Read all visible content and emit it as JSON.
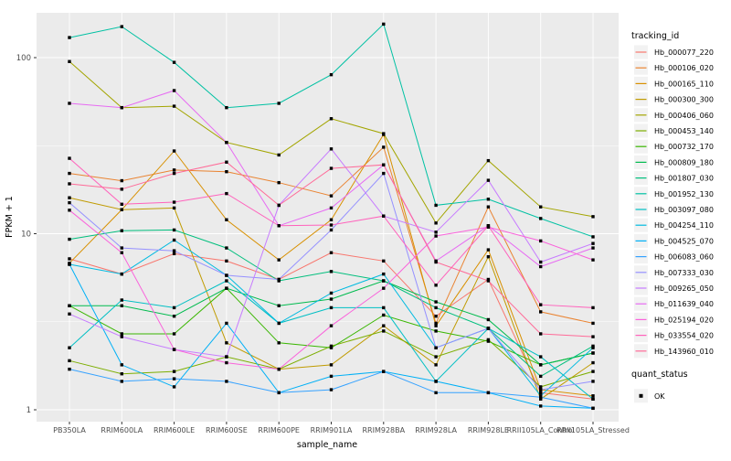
{
  "chart_data": {
    "type": "line",
    "title": "",
    "xlabel": "sample_name",
    "ylabel": "FPKM + 1",
    "y_scale": "log10",
    "y_ticks": [
      {
        "label": "1",
        "value": 1
      },
      {
        "label": "10",
        "value": 10
      },
      {
        "label": "100",
        "value": 100
      }
    ],
    "y_minor_ticks": [
      3.162,
      31.62
    ],
    "ylim": [
      0.855,
      180
    ],
    "grid": "on",
    "legend_position": "right",
    "panel_bg": "#EBEBEB",
    "grid_color": "#FFFFFF",
    "tick_label_color": "#4D4D4D",
    "axis_title_color": "#000000",
    "marker": {
      "shape": "square",
      "color": "#000000"
    },
    "categories": [
      "PB350LA",
      "RRIM600LA",
      "RRIM600LE",
      "RRIM600SE",
      "RRIM600PE",
      "RRIM901LA",
      "RRIM928BA",
      "RRIM928LA",
      "RRIM928LE",
      "RRII105LA_Control",
      "RRII105LA_Stressed"
    ],
    "series": [
      {
        "name": "Hb_000077_220",
        "color": "#F8766D",
        "values": [
          7.2,
          5.9,
          7.7,
          7.0,
          5.5,
          7.8,
          7.0,
          3.4,
          5.5,
          1.25,
          1.15
        ]
      },
      {
        "name": "Hb_000106_020",
        "color": "#EA8331",
        "values": [
          22,
          20,
          23,
          22.5,
          19.5,
          16.4,
          31,
          3.1,
          14.2,
          3.6,
          3.1
        ]
      },
      {
        "name": "Hb_000165_110",
        "color": "#D89000",
        "values": [
          6.8,
          13.7,
          29.5,
          12,
          7.1,
          12,
          36.6,
          3.0,
          8.1,
          1.3,
          1.2
        ]
      },
      {
        "name": "Hb_000300_300",
        "color": "#C09B00",
        "values": [
          16,
          13.7,
          14,
          2.4,
          1.7,
          1.8,
          3.0,
          1.8,
          7.4,
          1.15,
          1.85
        ]
      },
      {
        "name": "Hb_000406_060",
        "color": "#A3A500",
        "values": [
          95,
          52,
          53,
          33,
          28,
          45,
          37,
          11.5,
          26,
          14.2,
          12.5
        ]
      },
      {
        "name": "Hb_000453_140",
        "color": "#7CAE00",
        "values": [
          1.9,
          1.6,
          1.65,
          2.0,
          1.7,
          2.3,
          2.8,
          2.0,
          2.5,
          1.35,
          1.65
        ]
      },
      {
        "name": "Hb_000732_170",
        "color": "#39B600",
        "values": [
          3.9,
          2.7,
          2.7,
          4.9,
          2.4,
          2.25,
          3.45,
          2.8,
          2.45,
          1.8,
          2.1
        ]
      },
      {
        "name": "Hb_000809_180",
        "color": "#00BB4E",
        "values": [
          3.9,
          3.9,
          3.4,
          4.9,
          3.9,
          4.25,
          5.4,
          4.1,
          3.25,
          1.8,
          2.1
        ]
      },
      {
        "name": "Hb_001807_030",
        "color": "#00BF7D",
        "values": [
          9.3,
          10.4,
          10.5,
          8.3,
          5.4,
          6.1,
          5.4,
          3.8,
          2.9,
          1.55,
          2.3
        ]
      },
      {
        "name": "Hb_001952_130",
        "color": "#00C1A3",
        "values": [
          130,
          150,
          94,
          52,
          55,
          80,
          155,
          14.5,
          15.7,
          12.2,
          9.6
        ]
      },
      {
        "name": "Hb_003097_080",
        "color": "#00BFC4",
        "values": [
          2.25,
          4.2,
          3.8,
          5.4,
          3.1,
          3.8,
          3.8,
          1.45,
          2.9,
          2.0,
          1.15
        ]
      },
      {
        "name": "Hb_004254_110",
        "color": "#00BAE0",
        "values": [
          6.7,
          5.9,
          9.2,
          5.8,
          3.1,
          4.6,
          5.9,
          2.25,
          2.9,
          1.2,
          2.25
        ]
      },
      {
        "name": "Hb_004525_070",
        "color": "#00B0F6",
        "values": [
          6.7,
          1.8,
          1.35,
          3.1,
          1.25,
          1.55,
          1.65,
          1.45,
          1.25,
          1.05,
          1.02
        ]
      },
      {
        "name": "Hb_006083_060",
        "color": "#35A2FF",
        "values": [
          1.7,
          1.45,
          1.5,
          1.45,
          1.25,
          1.3,
          1.65,
          1.25,
          1.25,
          1.18,
          1.02
        ]
      },
      {
        "name": "Hb_007333_030",
        "color": "#9590FF",
        "values": [
          15,
          8.3,
          8.0,
          5.8,
          5.5,
          10.5,
          22,
          2.25,
          2.9,
          1.3,
          1.45
        ]
      },
      {
        "name": "Hb_009265_050",
        "color": "#C77CFF",
        "values": [
          3.5,
          2.6,
          2.2,
          2.0,
          14.5,
          30.3,
          12.6,
          10.2,
          20.1,
          6.9,
          8.8
        ]
      },
      {
        "name": "Hb_011639_040",
        "color": "#E76BF3",
        "values": [
          55,
          52,
          65,
          33,
          11.1,
          14,
          24.6,
          7.0,
          11.1,
          6.5,
          8.3
        ]
      },
      {
        "name": "Hb_025194_020",
        "color": "#FA62DB",
        "values": [
          13.6,
          7.8,
          2.2,
          1.85,
          1.7,
          3.0,
          4.9,
          9.7,
          10.9,
          9.1,
          7.1
        ]
      },
      {
        "name": "Hb_033554_020",
        "color": "#FF62BC",
        "values": [
          26.8,
          14.7,
          15.1,
          16.9,
          11.1,
          11.2,
          12.6,
          5.1,
          11.1,
          3.95,
          3.8
        ]
      },
      {
        "name": "Hb_143960_010",
        "color": "#FF6A98",
        "values": [
          19.2,
          17.9,
          22,
          25.5,
          14.5,
          23.5,
          24.6,
          6.9,
          5.4,
          2.7,
          2.6
        ]
      }
    ],
    "legend": {
      "tracking_title": "tracking_id",
      "quant_title": "quant_status",
      "quant_items": [
        {
          "label": "OK",
          "marker": "black-square"
        }
      ],
      "key_bg": "#F2F2F2"
    }
  }
}
